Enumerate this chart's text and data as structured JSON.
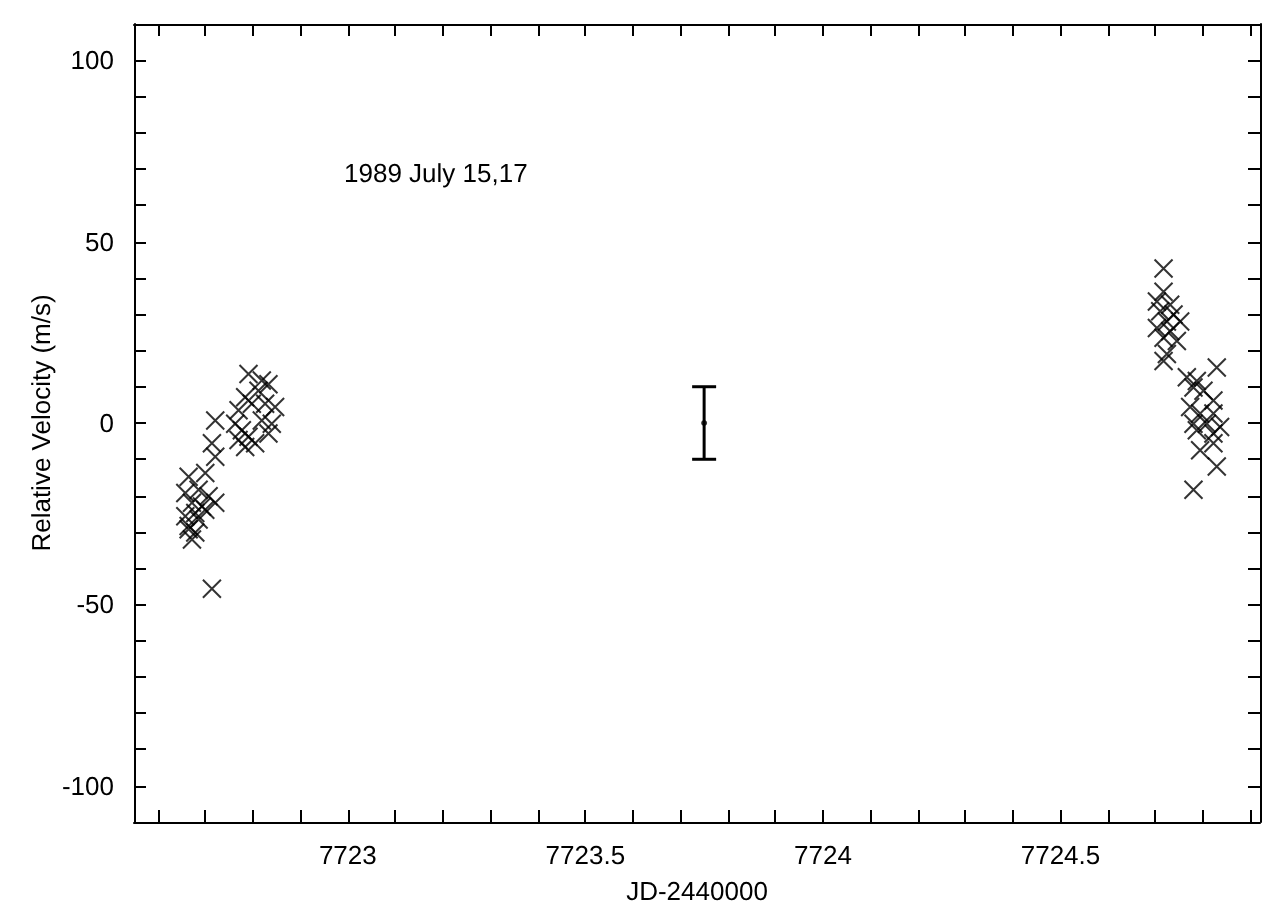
{
  "chart_data": {
    "type": "scatter",
    "xlabel": "JD-2440000",
    "ylabel": "Relative Velocity (m/s)",
    "annotations": [
      "1989 July 15,17"
    ],
    "xlim": [
      7722.55,
      7724.92
    ],
    "ylim": [
      -110,
      110
    ],
    "xticks": [
      {
        "value": 7722.6,
        "label": null
      },
      {
        "value": 7722.7,
        "label": null
      },
      {
        "value": 7722.8,
        "label": null
      },
      {
        "value": 7722.9,
        "label": null
      },
      7723,
      {
        "value": 7723.1,
        "label": null
      },
      {
        "value": 7723.2,
        "label": null
      },
      {
        "value": 7723.3,
        "label": null
      },
      {
        "value": 7723.4,
        "label": null
      },
      7723.5,
      {
        "value": 7723.6,
        "label": null
      },
      {
        "value": 7723.7,
        "label": null
      },
      {
        "value": 7723.8,
        "label": null
      },
      {
        "value": 7723.9,
        "label": null
      },
      7724,
      {
        "value": 7724.1,
        "label": null
      },
      {
        "value": 7724.2,
        "label": null
      },
      {
        "value": 7724.3,
        "label": null
      },
      {
        "value": 7724.4,
        "label": null
      },
      7724.5,
      {
        "value": 7724.6,
        "label": null
      },
      {
        "value": 7724.7,
        "label": null
      },
      {
        "value": 7724.8,
        "label": null
      },
      {
        "value": 7724.9,
        "label": null
      }
    ],
    "yticks": [
      -100,
      {
        "value": -90,
        "label": null
      },
      {
        "value": -80,
        "label": null
      },
      {
        "value": -70,
        "label": null
      },
      {
        "value": -60,
        "label": null
      },
      -50,
      {
        "value": -40,
        "label": null
      },
      {
        "value": -30,
        "label": null
      },
      {
        "value": -20,
        "label": null
      },
      {
        "value": -10,
        "label": null
      },
      0,
      {
        "value": 10,
        "label": null
      },
      {
        "value": 20,
        "label": null
      },
      {
        "value": 30,
        "label": null
      },
      {
        "value": 40,
        "label": null
      },
      50,
      {
        "value": 60,
        "label": null
      },
      {
        "value": 70,
        "label": null
      },
      {
        "value": 80,
        "label": null
      },
      {
        "value": 90,
        "label": null
      },
      100
    ],
    "series": [
      {
        "marker": "cross",
        "color": "#000000",
        "x": [
          7722.665,
          7722.7,
          7722.658,
          7722.686,
          7722.707,
          7722.672,
          7722.693,
          7722.721,
          7722.658,
          7722.679,
          7722.7,
          7722.665,
          7722.679,
          7722.672,
          7722.665,
          7722.686,
          7722.714,
          7722.721,
          7722.714,
          7722.721,
          7722.791,
          7722.819,
          7722.812,
          7722.784,
          7722.833,
          7722.77,
          7722.798,
          7722.826,
          7722.847,
          7722.763,
          7722.777,
          7722.791,
          7722.805,
          7722.819,
          7722.84,
          7722.833,
          7722.77,
          7722.784
        ],
        "values": [
          -14.8,
          -13.8,
          -19.3,
          -18.4,
          -20.2,
          -22,
          -23,
          -22,
          -25.7,
          -24.8,
          -23.9,
          -28.4,
          -30.2,
          -32.1,
          -29.3,
          -26.6,
          -45.7,
          0.7,
          -5.6,
          -9.3,
          13.5,
          11.7,
          8.9,
          7.1,
          10.7,
          3.5,
          5.3,
          5.3,
          4.4,
          -0.2,
          -2,
          -3.8,
          -5.6,
          0.7,
          -0.2,
          -2.9,
          -4.7,
          -6.6
        ]
      },
      {
        "marker": "cross",
        "color": "#000000",
        "x": [
          7724.717,
          7724.717,
          7724.703,
          7724.731,
          7724.71,
          7724.738,
          7724.724,
          7724.752,
          7724.703,
          7724.731,
          7724.717,
          7724.745,
          7724.724,
          7724.717,
          7724.766,
          7724.787,
          7724.829,
          7724.78,
          7724.801,
          7724.822,
          7724.773,
          7724.794,
          7724.822,
          7724.78,
          7724.808,
          7724.836,
          7724.787,
          7724.822,
          7724.794,
          7724.822,
          7724.829,
          7724.78
        ],
        "values": [
          42.6,
          36.2,
          33.5,
          32.6,
          30.8,
          29.9,
          28,
          28,
          26.2,
          25.3,
          23.5,
          22.6,
          19,
          17.1,
          12.6,
          11.6,
          15.3,
          9.8,
          8.9,
          6.2,
          4.4,
          2.6,
          2.6,
          -0.2,
          -0.2,
          -1.1,
          -2,
          -2.9,
          -7.5,
          -5.6,
          -12,
          -18.4
        ]
      },
      {
        "color": "#000000",
        "x": [
          7723.75
        ],
        "values": [
          0
        ],
        "errors": [
          10
        ]
      }
    ]
  }
}
